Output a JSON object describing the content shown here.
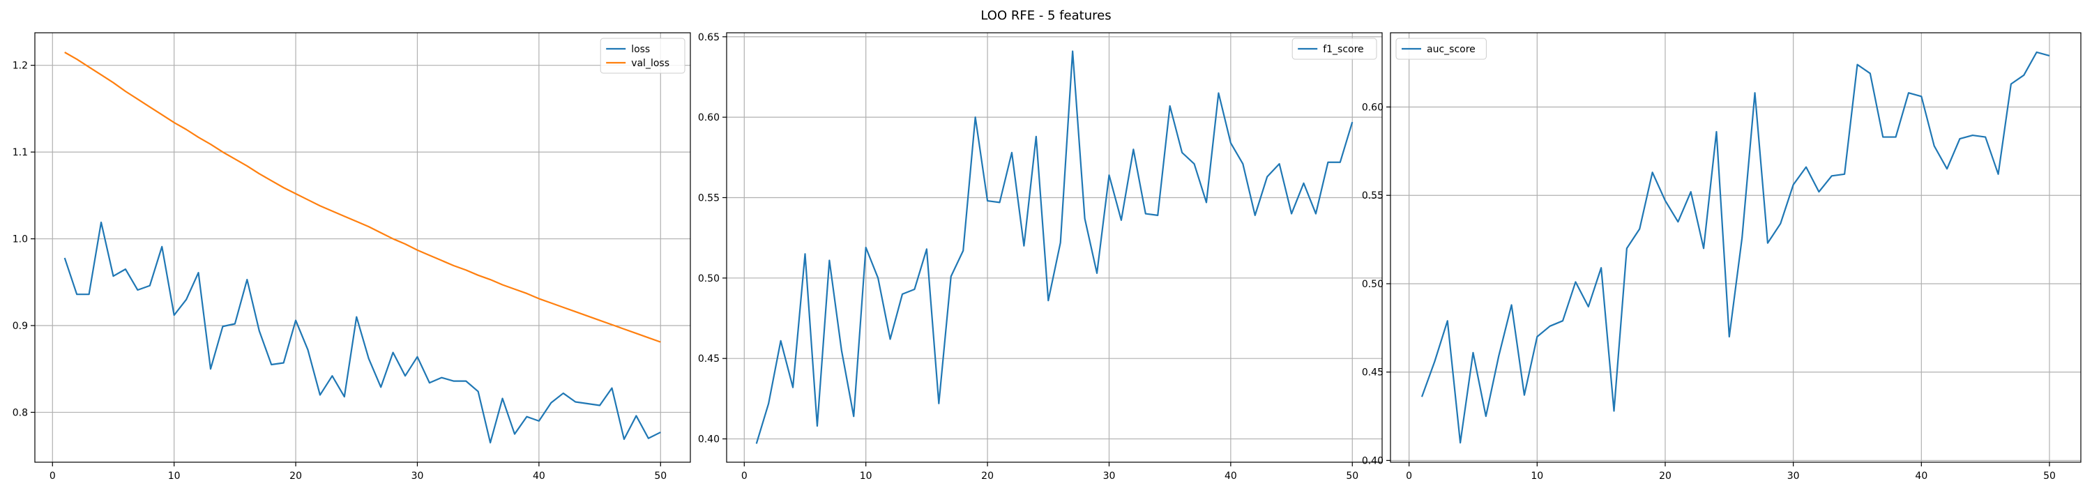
{
  "figure": {
    "title": "LOO RFE - 5 features"
  },
  "colors": {
    "blue": "#1f77b4",
    "orange": "#ff7f0e",
    "grid": "#b0b0b0",
    "axis": "#000000"
  },
  "chart_data": [
    {
      "type": "line",
      "title": "",
      "xlabel": "",
      "ylabel": "",
      "xlim": [
        -1.45,
        52.45
      ],
      "ylim": [
        0.7425,
        1.2375
      ],
      "xticks": [
        0,
        10,
        20,
        30,
        40,
        50
      ],
      "yticks": [
        0.8,
        0.9,
        1.0,
        1.1,
        1.2
      ],
      "ytick_labels": [
        "0.8",
        "0.9",
        "1.0",
        "1.1",
        "1.2"
      ],
      "grid": true,
      "legend": "upper right",
      "x": [
        1,
        2,
        3,
        4,
        5,
        6,
        7,
        8,
        9,
        10,
        11,
        12,
        13,
        14,
        15,
        16,
        17,
        18,
        19,
        20,
        21,
        22,
        23,
        24,
        25,
        26,
        27,
        28,
        29,
        30,
        31,
        32,
        33,
        34,
        35,
        36,
        37,
        38,
        39,
        40,
        41,
        42,
        43,
        44,
        45,
        46,
        47,
        48,
        49,
        50
      ],
      "series": [
        {
          "name": "loss",
          "color": "#1f77b4",
          "values": [
            0.978,
            0.936,
            0.936,
            1.019,
            0.957,
            0.965,
            0.941,
            0.946,
            0.991,
            0.912,
            0.93,
            0.961,
            0.85,
            0.899,
            0.902,
            0.953,
            0.894,
            0.855,
            0.857,
            0.906,
            0.872,
            0.82,
            0.842,
            0.818,
            0.91,
            0.862,
            0.829,
            0.869,
            0.842,
            0.864,
            0.834,
            0.84,
            0.836,
            0.836,
            0.824,
            0.765,
            0.816,
            0.775,
            0.795,
            0.79,
            0.811,
            0.822,
            0.812,
            0.81,
            0.808,
            0.828,
            0.769,
            0.796,
            0.77,
            0.777
          ]
        },
        {
          "name": "val_loss",
          "color": "#ff7f0e",
          "values": [
            1.215,
            1.207,
            1.198,
            1.189,
            1.18,
            1.17,
            1.161,
            1.152,
            1.143,
            1.134,
            1.126,
            1.117,
            1.109,
            1.1,
            1.092,
            1.084,
            1.075,
            1.067,
            1.059,
            1.052,
            1.045,
            1.038,
            1.032,
            1.026,
            1.02,
            1.014,
            1.007,
            1.0,
            0.994,
            0.987,
            0.981,
            0.975,
            0.969,
            0.964,
            0.958,
            0.953,
            0.947,
            0.942,
            0.937,
            0.931,
            0.926,
            0.921,
            0.916,
            0.911,
            0.906,
            0.901,
            0.896,
            0.891,
            0.886,
            0.881
          ]
        }
      ]
    },
    {
      "type": "line",
      "title": "",
      "xlabel": "",
      "ylabel": "",
      "xlim": [
        -1.45,
        52.45
      ],
      "ylim": [
        0.3855,
        0.6525
      ],
      "xticks": [
        0,
        10,
        20,
        30,
        40,
        50
      ],
      "yticks": [
        0.4,
        0.45,
        0.5,
        0.55,
        0.6,
        0.65
      ],
      "ytick_labels": [
        "0.40",
        "0.45",
        "0.50",
        "0.55",
        "0.60",
        "0.65"
      ],
      "grid": true,
      "legend": "upper right",
      "x": [
        1,
        2,
        3,
        4,
        5,
        6,
        7,
        8,
        9,
        10,
        11,
        12,
        13,
        14,
        15,
        16,
        17,
        18,
        19,
        20,
        21,
        22,
        23,
        24,
        25,
        26,
        27,
        28,
        29,
        30,
        31,
        32,
        33,
        34,
        35,
        36,
        37,
        38,
        39,
        40,
        41,
        42,
        43,
        44,
        45,
        46,
        47,
        48,
        49,
        50
      ],
      "series": [
        {
          "name": "f1_score",
          "color": "#1f77b4",
          "values": [
            0.397,
            0.422,
            0.461,
            0.432,
            0.515,
            0.408,
            0.511,
            0.455,
            0.414,
            0.519,
            0.5,
            0.462,
            0.49,
            0.493,
            0.518,
            0.422,
            0.501,
            0.517,
            0.6,
            0.548,
            0.547,
            0.578,
            0.52,
            0.588,
            0.486,
            0.522,
            0.641,
            0.537,
            0.503,
            0.564,
            0.536,
            0.58,
            0.54,
            0.539,
            0.607,
            0.578,
            0.571,
            0.547,
            0.615,
            0.584,
            0.571,
            0.539,
            0.563,
            0.571,
            0.54,
            0.559,
            0.54,
            0.572,
            0.572,
            0.597
          ]
        }
      ]
    },
    {
      "type": "line",
      "title": "",
      "xlabel": "",
      "ylabel": "",
      "xlim": [
        -1.45,
        52.45
      ],
      "ylim": [
        0.399,
        0.642
      ],
      "xticks": [
        0,
        10,
        20,
        30,
        40,
        50
      ],
      "yticks": [
        0.4,
        0.45,
        0.5,
        0.55,
        0.6
      ],
      "ytick_labels": [
        "0.40",
        "0.45",
        "0.50",
        "0.55",
        "0.60"
      ],
      "grid": true,
      "legend": "upper left",
      "x": [
        1,
        2,
        3,
        4,
        5,
        6,
        7,
        8,
        9,
        10,
        11,
        12,
        13,
        14,
        15,
        16,
        17,
        18,
        19,
        20,
        21,
        22,
        23,
        24,
        25,
        26,
        27,
        28,
        29,
        30,
        31,
        32,
        33,
        34,
        35,
        36,
        37,
        38,
        39,
        40,
        41,
        42,
        43,
        44,
        45,
        46,
        47,
        48,
        49,
        50
      ],
      "series": [
        {
          "name": "auc_score",
          "color": "#1f77b4",
          "values": [
            0.436,
            0.456,
            0.479,
            0.41,
            0.461,
            0.425,
            0.459,
            0.488,
            0.437,
            0.47,
            0.476,
            0.479,
            0.501,
            0.487,
            0.509,
            0.428,
            0.52,
            0.531,
            0.563,
            0.547,
            0.535,
            0.552,
            0.52,
            0.586,
            0.47,
            0.526,
            0.608,
            0.523,
            0.534,
            0.556,
            0.566,
            0.552,
            0.561,
            0.562,
            0.624,
            0.619,
            0.583,
            0.583,
            0.608,
            0.606,
            0.578,
            0.565,
            0.582,
            0.584,
            0.583,
            0.562,
            0.613,
            0.618,
            0.631,
            0.629
          ]
        }
      ]
    }
  ]
}
